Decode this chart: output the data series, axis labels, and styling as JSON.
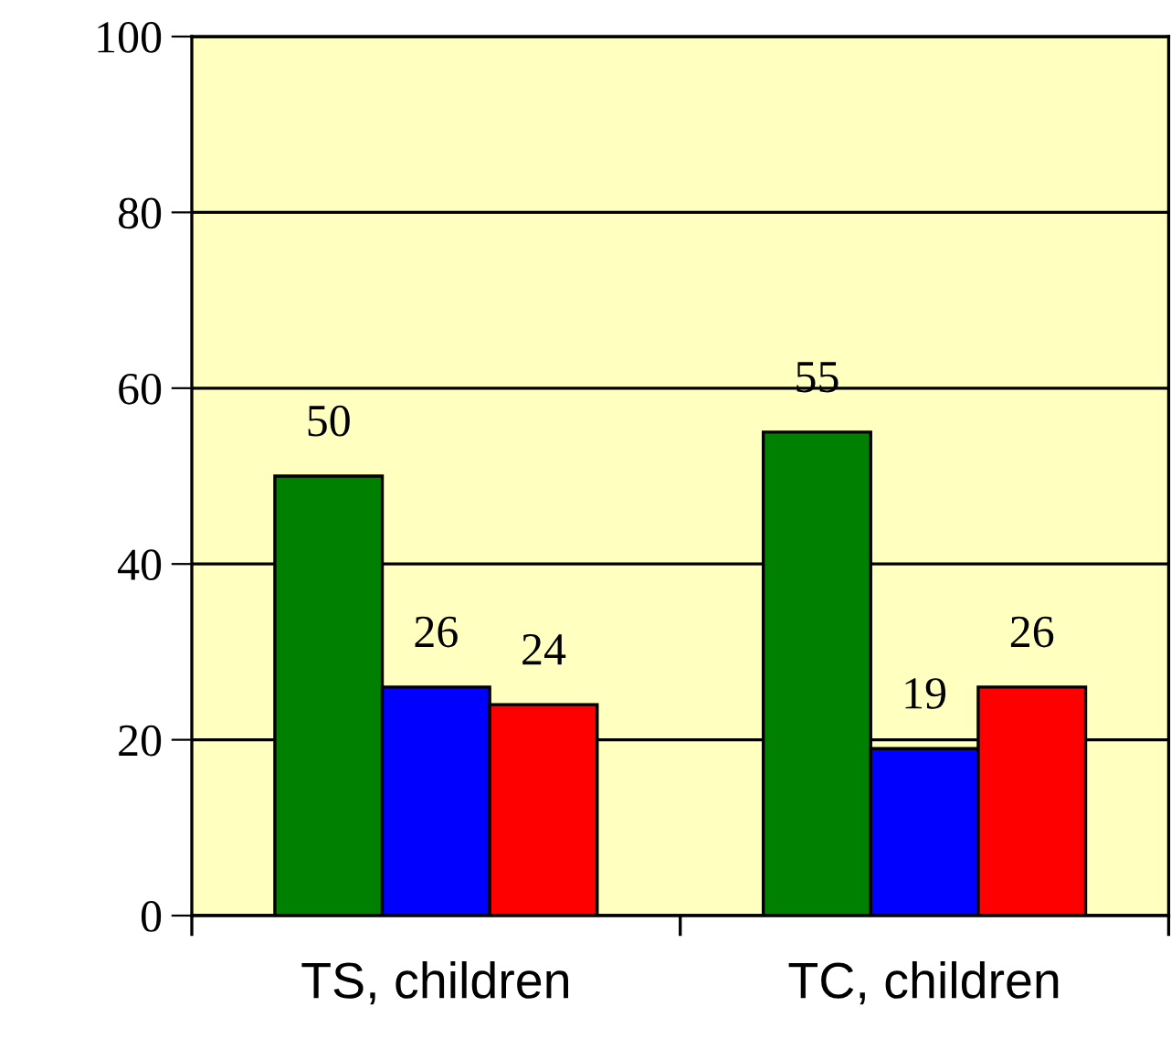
{
  "chart_data": {
    "type": "bar",
    "categories": [
      "TS, children",
      "TC, children"
    ],
    "series": [
      {
        "color": "#008000",
        "values": [
          50,
          55
        ]
      },
      {
        "color": "#0000ff",
        "values": [
          26,
          19
        ]
      },
      {
        "color": "#ff0000",
        "values": [
          24,
          26
        ]
      }
    ],
    "ylim": [
      0,
      100
    ],
    "yticks": [
      0,
      20,
      40,
      60,
      80,
      100
    ],
    "grid": "y",
    "data_labels": true,
    "legend": false
  }
}
